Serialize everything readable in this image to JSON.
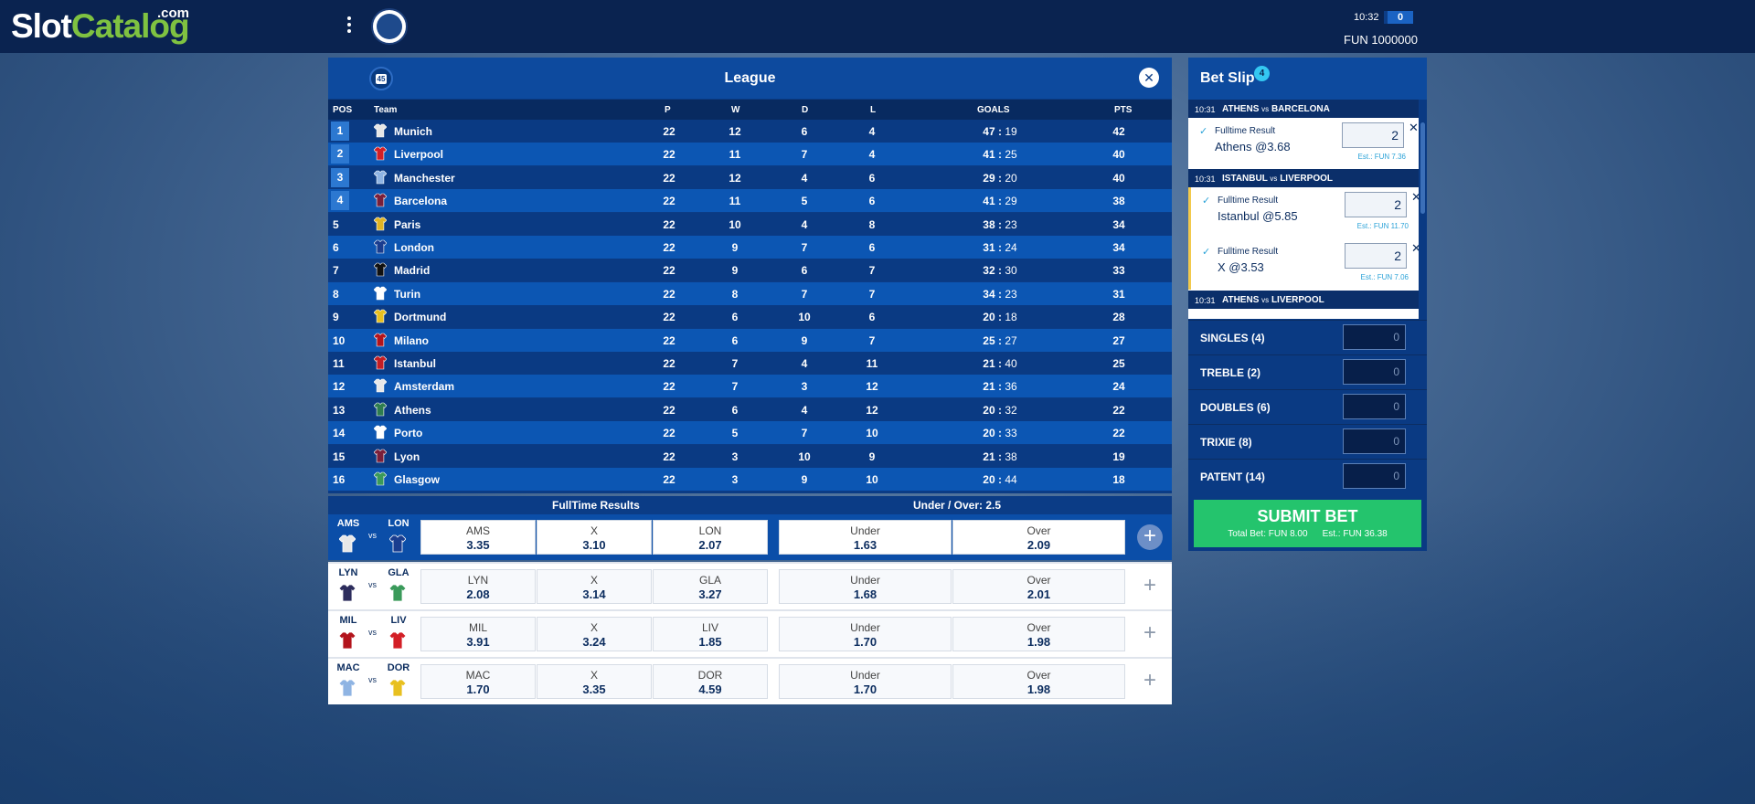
{
  "header": {
    "logo_main": "Slot",
    "logo_accent": "Catalog",
    "logo_suffix": ".com",
    "time": "10:32",
    "counter": "0",
    "balance": "FUN 1000000"
  },
  "league": {
    "week": "45",
    "title": "League",
    "columns": {
      "pos": "POS",
      "team": "Team",
      "p": "P",
      "w": "W",
      "d": "D",
      "l": "L",
      "goals": "GOALS",
      "pts": "PTS"
    },
    "rows": [
      {
        "pos": "1",
        "team": "Munich",
        "p": "22",
        "w": "12",
        "d": "6",
        "l": "4",
        "gf": "47",
        "ga": "19",
        "pts": "42"
      },
      {
        "pos": "2",
        "team": "Liverpool",
        "p": "22",
        "w": "11",
        "d": "7",
        "l": "4",
        "gf": "41",
        "ga": "25",
        "pts": "40"
      },
      {
        "pos": "3",
        "team": "Manchester",
        "p": "22",
        "w": "12",
        "d": "4",
        "l": "6",
        "gf": "29",
        "ga": "20",
        "pts": "40"
      },
      {
        "pos": "4",
        "team": "Barcelona",
        "p": "22",
        "w": "11",
        "d": "5",
        "l": "6",
        "gf": "41",
        "ga": "29",
        "pts": "38"
      },
      {
        "pos": "5",
        "team": "Paris",
        "p": "22",
        "w": "10",
        "d": "4",
        "l": "8",
        "gf": "38",
        "ga": "23",
        "pts": "34"
      },
      {
        "pos": "6",
        "team": "London",
        "p": "22",
        "w": "9",
        "d": "7",
        "l": "6",
        "gf": "31",
        "ga": "24",
        "pts": "34"
      },
      {
        "pos": "7",
        "team": "Madrid",
        "p": "22",
        "w": "9",
        "d": "6",
        "l": "7",
        "gf": "32",
        "ga": "30",
        "pts": "33"
      },
      {
        "pos": "8",
        "team": "Turin",
        "p": "22",
        "w": "8",
        "d": "7",
        "l": "7",
        "gf": "34",
        "ga": "23",
        "pts": "31"
      },
      {
        "pos": "9",
        "team": "Dortmund",
        "p": "22",
        "w": "6",
        "d": "10",
        "l": "6",
        "gf": "20",
        "ga": "18",
        "pts": "28"
      },
      {
        "pos": "10",
        "team": "Milano",
        "p": "22",
        "w": "6",
        "d": "9",
        "l": "7",
        "gf": "25",
        "ga": "27",
        "pts": "27"
      },
      {
        "pos": "11",
        "team": "Istanbul",
        "p": "22",
        "w": "7",
        "d": "4",
        "l": "11",
        "gf": "21",
        "ga": "40",
        "pts": "25"
      },
      {
        "pos": "12",
        "team": "Amsterdam",
        "p": "22",
        "w": "7",
        "d": "3",
        "l": "12",
        "gf": "21",
        "ga": "36",
        "pts": "24"
      },
      {
        "pos": "13",
        "team": "Athens",
        "p": "22",
        "w": "6",
        "d": "4",
        "l": "12",
        "gf": "20",
        "ga": "32",
        "pts": "22"
      },
      {
        "pos": "14",
        "team": "Porto",
        "p": "22",
        "w": "5",
        "d": "7",
        "l": "10",
        "gf": "20",
        "ga": "33",
        "pts": "22"
      },
      {
        "pos": "15",
        "team": "Lyon",
        "p": "22",
        "w": "3",
        "d": "10",
        "l": "9",
        "gf": "21",
        "ga": "38",
        "pts": "19"
      },
      {
        "pos": "16",
        "team": "Glasgow",
        "p": "22",
        "w": "3",
        "d": "9",
        "l": "10",
        "gf": "20",
        "ga": "44",
        "pts": "18"
      }
    ],
    "shirt_colors": [
      "#e6e6e6",
      "#d31f26",
      "#8fb4e3",
      "#7a1f3a",
      "#e0b424",
      "#1a3d8f",
      "#111111",
      "#ffffff",
      "#e8c020",
      "#b3141c",
      "#c41e24",
      "#e8e8e8",
      "#2e7d4f",
      "#ffffff",
      "#7a1f3a",
      "#3a9a5a"
    ]
  },
  "markets": {
    "header_1x2": "FullTime Results",
    "header_ou": "Under / Over: 2.5",
    "vs_label": "vs",
    "matches": [
      {
        "home": "AMS",
        "away": "LON",
        "h_odd": "3.35",
        "x_odd": "3.10",
        "a_odd": "2.07",
        "under_label": "Under",
        "under": "1.63",
        "over_label": "Over",
        "over": "2.09",
        "x_label": "X",
        "home_color": "#e8e8e8",
        "away_color": "#1a3d8f"
      },
      {
        "home": "LYN",
        "away": "GLA",
        "h_odd": "2.08",
        "x_odd": "3.14",
        "a_odd": "3.27",
        "under_label": "Under",
        "under": "1.68",
        "over_label": "Over",
        "over": "2.01",
        "x_label": "X",
        "home_color": "#2c2c5c",
        "away_color": "#3a9a5a"
      },
      {
        "home": "MIL",
        "away": "LIV",
        "h_odd": "3.91",
        "x_odd": "3.24",
        "a_odd": "1.85",
        "under_label": "Under",
        "under": "1.70",
        "over_label": "Over",
        "over": "1.98",
        "x_label": "X",
        "home_color": "#b3141c",
        "away_color": "#d31f26"
      },
      {
        "home": "MAC",
        "away": "DOR",
        "h_odd": "1.70",
        "x_odd": "3.35",
        "a_odd": "4.59",
        "under_label": "Under",
        "under": "1.70",
        "over_label": "Over",
        "over": "1.98",
        "x_label": "X",
        "home_color": "#8fb4e3",
        "away_color": "#e8c020"
      }
    ]
  },
  "betslip": {
    "title": "Bet Slip",
    "count": "4",
    "events": [
      {
        "time": "10:31",
        "home": "ATHENS",
        "vs": "vs",
        "away": "BARCELONA"
      },
      {
        "time": "10:31",
        "home": "ISTANBUL",
        "vs": "vs",
        "away": "LIVERPOOL"
      },
      {
        "time": "10:31",
        "home": "ATHENS",
        "vs": "vs",
        "away": "LIVERPOOL"
      }
    ],
    "bets": [
      {
        "market": "Fulltime Result",
        "selection": "Athens @3.68",
        "stake": "2",
        "est": "Est.: FUN 7.36"
      },
      {
        "market": "Fulltime Result",
        "selection": "Istanbul @5.85",
        "stake": "2",
        "est": "Est.: FUN 11.70"
      },
      {
        "market": "Fulltime Result",
        "selection": "X @3.53",
        "stake": "2",
        "est": "Est.: FUN 7.06"
      }
    ],
    "multiples": [
      {
        "label": "SINGLES (4)",
        "value": "0"
      },
      {
        "label": "TREBLE (2)",
        "value": "0"
      },
      {
        "label": "DOUBLES (6)",
        "value": "0"
      },
      {
        "label": "TRIXIE (8)",
        "value": "0"
      },
      {
        "label": "PATENT (14)",
        "value": "0"
      }
    ],
    "submit_label": "SUBMIT BET",
    "total_bet": "Total Bet: FUN 8.00",
    "est_total": "Est.: FUN 36.38"
  }
}
